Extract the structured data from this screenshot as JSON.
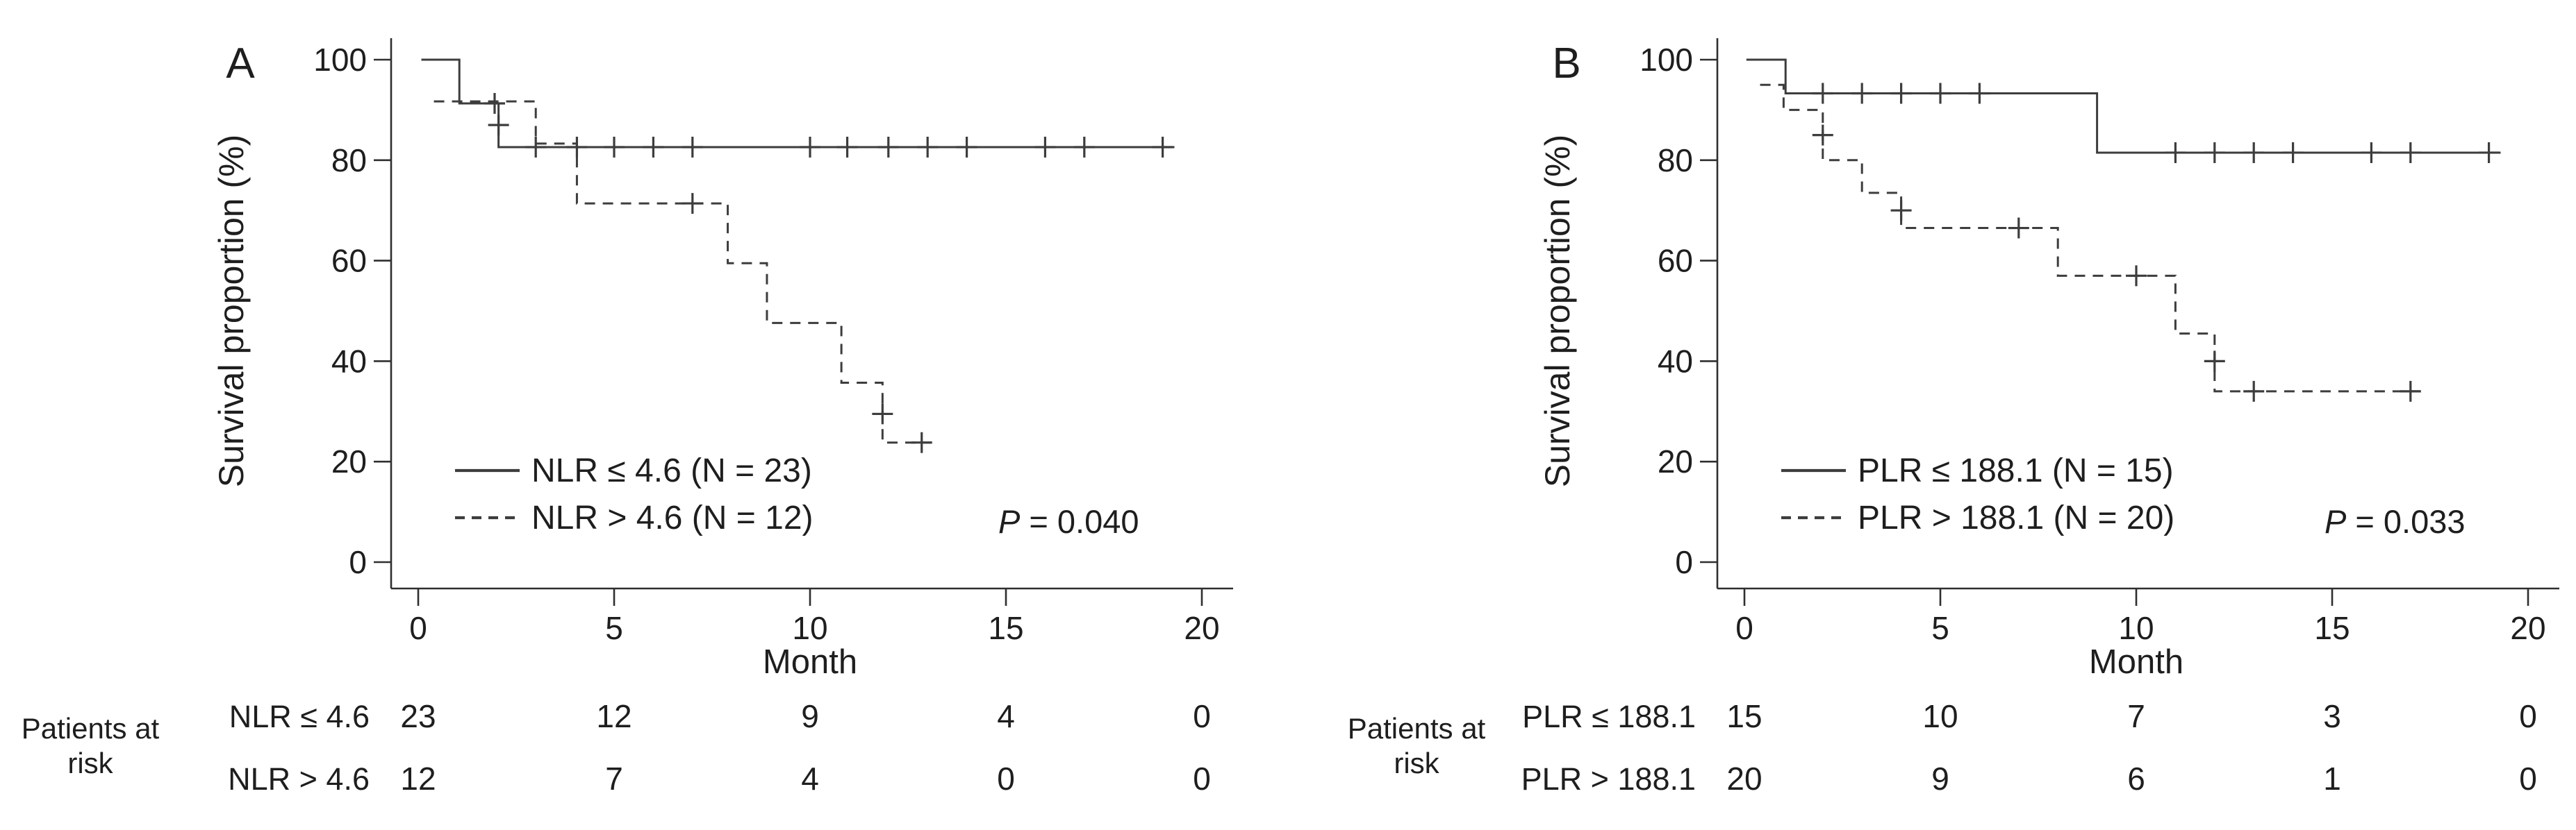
{
  "figure": {
    "background": "#ffffff",
    "text_color": "#1e1e1e",
    "curve_color": "#3d3d3d",
    "axis_color": "#2f2f2f"
  },
  "chart_data": [
    {
      "type": "line",
      "subtype": "kaplan-meier-step",
      "panel_label": "A",
      "xlabel": "Month",
      "ylabel": "Survival proportion (%)",
      "x_ticks": [
        0,
        5,
        10,
        15,
        20
      ],
      "y_ticks": [
        0,
        20,
        40,
        60,
        80,
        100
      ],
      "xlim": [
        0,
        21.5
      ],
      "ylim": [
        0,
        100
      ],
      "grid": false,
      "legend_position": "inside-lower-left",
      "p_label_italic": "P",
      "p_label_rest": " = 0.040",
      "series": [
        {
          "name": "NLR ≤ 4.6 (N = 23)",
          "n": 23,
          "line_style": "solid",
          "steps_month_pct": [
            [
              0.08,
              100
            ],
            [
              1.05,
              100
            ],
            [
              1.05,
              91.3
            ],
            [
              2.05,
              91.3
            ],
            [
              2.05,
              82.6
            ],
            [
              19.3,
              82.6
            ]
          ],
          "censors_month_pct": [
            [
              1.95,
              91.3
            ],
            [
              2.05,
              87
            ],
            [
              3,
              82.6
            ],
            [
              4.05,
              82.6
            ],
            [
              5,
              82.6
            ],
            [
              6,
              82.6
            ],
            [
              7,
              82.6
            ],
            [
              10,
              82.6
            ],
            [
              10.95,
              82.6
            ],
            [
              12,
              82.6
            ],
            [
              13,
              82.6
            ],
            [
              14,
              82.6
            ],
            [
              16,
              82.6
            ],
            [
              17,
              82.6
            ],
            [
              19,
              82.6
            ]
          ]
        },
        {
          "name": "NLR > 4.6 (N = 12)",
          "n": 12,
          "line_style": "dashed",
          "steps_month_pct": [
            [
              0.4,
              91.7
            ],
            [
              3,
              91.7
            ],
            [
              3,
              83.3
            ],
            [
              4.05,
              83.3
            ],
            [
              4.05,
              71.4
            ],
            [
              7.9,
              71.4
            ],
            [
              7.9,
              59.5
            ],
            [
              8.9,
              59.5
            ],
            [
              8.9,
              47.6
            ],
            [
              10.8,
              47.6
            ],
            [
              10.8,
              35.7
            ],
            [
              11.85,
              35.7
            ],
            [
              11.85,
              23.8
            ],
            [
              13.1,
              23.8
            ]
          ],
          "censors_month_pct": [
            [
              7,
              71.4
            ],
            [
              11.85,
              29.5
            ],
            [
              12.85,
              23.8
            ]
          ]
        }
      ],
      "patients_at_risk": {
        "label_lines": [
          "Patients at",
          "risk"
        ],
        "columns_months": [
          0,
          5,
          10,
          15,
          20
        ],
        "rows": [
          {
            "label": "NLR ≤ 4.6",
            "counts": [
              "23",
              "12",
              "9",
              "4",
              "0"
            ]
          },
          {
            "label": "NLR > 4.6",
            "counts": [
              "12",
              "7",
              "4",
              "0",
              "0"
            ]
          }
        ]
      }
    },
    {
      "type": "line",
      "subtype": "kaplan-meier-step",
      "panel_label": "B",
      "xlabel": "Month",
      "ylabel": "Survival proportion (%)",
      "x_ticks": [
        0,
        5,
        10,
        15,
        20
      ],
      "y_ticks": [
        0,
        20,
        40,
        60,
        80,
        100
      ],
      "xlim": [
        0,
        21.5
      ],
      "ylim": [
        0,
        100
      ],
      "grid": false,
      "legend_position": "inside-lower-left",
      "p_label_italic": "P",
      "p_label_rest": " = 0.033",
      "series": [
        {
          "name": "PLR ≤ 188.1 (N = 15)",
          "n": 15,
          "line_style": "solid",
          "steps_month_pct": [
            [
              0.05,
              100
            ],
            [
              1.05,
              100
            ],
            [
              1.05,
              93.3
            ],
            [
              9,
              93.3
            ],
            [
              9,
              81.5
            ],
            [
              19.3,
              81.5
            ]
          ],
          "censors_month_pct": [
            [
              2,
              93.3
            ],
            [
              3,
              93.3
            ],
            [
              4,
              93.3
            ],
            [
              5,
              93.3
            ],
            [
              6,
              93.3
            ],
            [
              11,
              81.5
            ],
            [
              12,
              81.5
            ],
            [
              13,
              81.5
            ],
            [
              14,
              81.5
            ],
            [
              16,
              81.5
            ],
            [
              17,
              81.5
            ],
            [
              19,
              81.5
            ]
          ]
        },
        {
          "name": "PLR > 188.1 (N = 20)",
          "n": 20,
          "line_style": "dashed",
          "steps_month_pct": [
            [
              0.4,
              95
            ],
            [
              1,
              95
            ],
            [
              1,
              90
            ],
            [
              2,
              90
            ],
            [
              2,
              80
            ],
            [
              3,
              80
            ],
            [
              3,
              73.5
            ],
            [
              4,
              73.5
            ],
            [
              4,
              66.5
            ],
            [
              8,
              66.5
            ],
            [
              8,
              57
            ],
            [
              11,
              57
            ],
            [
              11,
              45.5
            ],
            [
              12,
              45.5
            ],
            [
              12,
              34
            ],
            [
              17.25,
              34
            ]
          ],
          "censors_month_pct": [
            [
              2,
              85
            ],
            [
              4,
              70
            ],
            [
              7,
              66.5
            ],
            [
              10,
              57
            ],
            [
              12,
              40
            ],
            [
              13,
              34
            ],
            [
              17,
              34
            ]
          ]
        }
      ],
      "patients_at_risk": {
        "label_lines": [
          "Patients at",
          "risk"
        ],
        "columns_months": [
          0,
          5,
          10,
          15,
          20
        ],
        "rows": [
          {
            "label": "PLR ≤ 188.1",
            "counts": [
              "15",
              "10",
              "7",
              "3",
              "0"
            ]
          },
          {
            "label": "PLR > 188.1",
            "counts": [
              "20",
              "9",
              "6",
              "1",
              "0"
            ]
          }
        ]
      }
    }
  ]
}
